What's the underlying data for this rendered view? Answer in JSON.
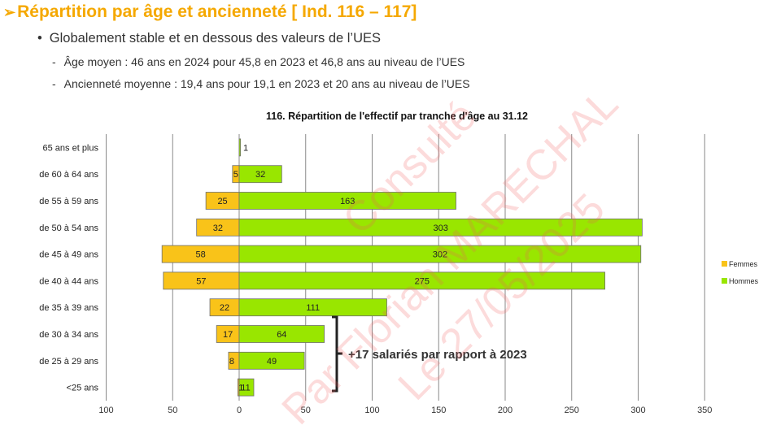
{
  "header": {
    "arrow": "➢",
    "title": "Répartition par âge et ancienneté [ Ind. 116 – 117]"
  },
  "bullets": {
    "main": "Globalement stable et en dessous des valeurs de l’UES",
    "sub1": "Âge moyen : 46 ans en 2024 pour 45,8 en 2023 et 46,8 ans au niveau de l’UES",
    "sub2": "Ancienneté moyenne : 19,4 ans pour 19,1 en 2023 et 20 ans au niveau de l’UES"
  },
  "annotation": "+17 salariés par rapport à 2023",
  "watermark": {
    "line1": "Consulté",
    "line2": "Par Florian MARECHAL",
    "line3": "Le 27/05/2025"
  },
  "colors": {
    "femmes": "#f9c319",
    "hommes": "#99e600",
    "title": "#f5a800"
  },
  "chart_data": {
    "type": "bar",
    "orientation": "horizontal",
    "title": "116. Répartition de l'effectif par tranche d'âge au 31.12",
    "categories": [
      "65 ans et plus",
      "de 60 à 64 ans",
      "de 55 à 59 ans",
      "de 50 à 54 ans",
      "de 45 à 49 ans",
      "de 40 à 44 ans",
      "de 35 à 39 ans",
      "de 30 à 34 ans",
      "de 25 à 29 ans",
      "<25 ans"
    ],
    "series": [
      {
        "name": "Femmes",
        "values": [
          0,
          5,
          25,
          32,
          58,
          57,
          22,
          17,
          8,
          1
        ]
      },
      {
        "name": "Hommes",
        "values": [
          1,
          32,
          163,
          303,
          302,
          275,
          111,
          64,
          49,
          11
        ]
      }
    ],
    "femmes_labels": [
      "",
      "5",
      "25",
      "32",
      "58",
      "57",
      "22",
      "17",
      "8",
      "1"
    ],
    "hommes_labels": [
      "1",
      "32",
      "163",
      "303",
      "302",
      "275",
      "111",
      "64",
      "49",
      "11"
    ],
    "xticks": [
      "100",
      "50",
      "0",
      "50",
      "100",
      "150",
      "200",
      "250",
      "300",
      "350"
    ],
    "xlim": [
      -100,
      350
    ],
    "grid": true,
    "legend": "right"
  }
}
